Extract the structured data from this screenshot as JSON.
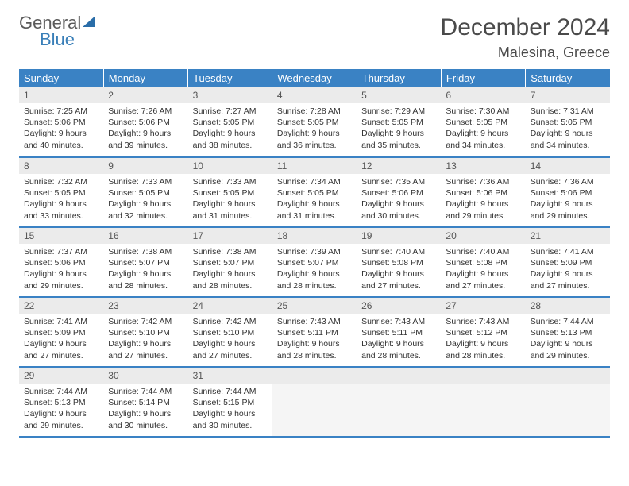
{
  "brand": {
    "line1": "General",
    "line2": "Blue"
  },
  "title": "December 2024",
  "location": "Malesina, Greece",
  "colors": {
    "header_bg": "#3a82c4",
    "header_text": "#ffffff",
    "daynum_bg": "#ebebeb",
    "border": "#3a82c4",
    "text": "#333333"
  },
  "weekdays": [
    "Sunday",
    "Monday",
    "Tuesday",
    "Wednesday",
    "Thursday",
    "Friday",
    "Saturday"
  ],
  "weeks": [
    [
      {
        "n": "1",
        "sr": "Sunrise: 7:25 AM",
        "ss": "Sunset: 5:06 PM",
        "d1": "Daylight: 9 hours",
        "d2": "and 40 minutes."
      },
      {
        "n": "2",
        "sr": "Sunrise: 7:26 AM",
        "ss": "Sunset: 5:06 PM",
        "d1": "Daylight: 9 hours",
        "d2": "and 39 minutes."
      },
      {
        "n": "3",
        "sr": "Sunrise: 7:27 AM",
        "ss": "Sunset: 5:05 PM",
        "d1": "Daylight: 9 hours",
        "d2": "and 38 minutes."
      },
      {
        "n": "4",
        "sr": "Sunrise: 7:28 AM",
        "ss": "Sunset: 5:05 PM",
        "d1": "Daylight: 9 hours",
        "d2": "and 36 minutes."
      },
      {
        "n": "5",
        "sr": "Sunrise: 7:29 AM",
        "ss": "Sunset: 5:05 PM",
        "d1": "Daylight: 9 hours",
        "d2": "and 35 minutes."
      },
      {
        "n": "6",
        "sr": "Sunrise: 7:30 AM",
        "ss": "Sunset: 5:05 PM",
        "d1": "Daylight: 9 hours",
        "d2": "and 34 minutes."
      },
      {
        "n": "7",
        "sr": "Sunrise: 7:31 AM",
        "ss": "Sunset: 5:05 PM",
        "d1": "Daylight: 9 hours",
        "d2": "and 34 minutes."
      }
    ],
    [
      {
        "n": "8",
        "sr": "Sunrise: 7:32 AM",
        "ss": "Sunset: 5:05 PM",
        "d1": "Daylight: 9 hours",
        "d2": "and 33 minutes."
      },
      {
        "n": "9",
        "sr": "Sunrise: 7:33 AM",
        "ss": "Sunset: 5:05 PM",
        "d1": "Daylight: 9 hours",
        "d2": "and 32 minutes."
      },
      {
        "n": "10",
        "sr": "Sunrise: 7:33 AM",
        "ss": "Sunset: 5:05 PM",
        "d1": "Daylight: 9 hours",
        "d2": "and 31 minutes."
      },
      {
        "n": "11",
        "sr": "Sunrise: 7:34 AM",
        "ss": "Sunset: 5:05 PM",
        "d1": "Daylight: 9 hours",
        "d2": "and 31 minutes."
      },
      {
        "n": "12",
        "sr": "Sunrise: 7:35 AM",
        "ss": "Sunset: 5:06 PM",
        "d1": "Daylight: 9 hours",
        "d2": "and 30 minutes."
      },
      {
        "n": "13",
        "sr": "Sunrise: 7:36 AM",
        "ss": "Sunset: 5:06 PM",
        "d1": "Daylight: 9 hours",
        "d2": "and 29 minutes."
      },
      {
        "n": "14",
        "sr": "Sunrise: 7:36 AM",
        "ss": "Sunset: 5:06 PM",
        "d1": "Daylight: 9 hours",
        "d2": "and 29 minutes."
      }
    ],
    [
      {
        "n": "15",
        "sr": "Sunrise: 7:37 AM",
        "ss": "Sunset: 5:06 PM",
        "d1": "Daylight: 9 hours",
        "d2": "and 29 minutes."
      },
      {
        "n": "16",
        "sr": "Sunrise: 7:38 AM",
        "ss": "Sunset: 5:07 PM",
        "d1": "Daylight: 9 hours",
        "d2": "and 28 minutes."
      },
      {
        "n": "17",
        "sr": "Sunrise: 7:38 AM",
        "ss": "Sunset: 5:07 PM",
        "d1": "Daylight: 9 hours",
        "d2": "and 28 minutes."
      },
      {
        "n": "18",
        "sr": "Sunrise: 7:39 AM",
        "ss": "Sunset: 5:07 PM",
        "d1": "Daylight: 9 hours",
        "d2": "and 28 minutes."
      },
      {
        "n": "19",
        "sr": "Sunrise: 7:40 AM",
        "ss": "Sunset: 5:08 PM",
        "d1": "Daylight: 9 hours",
        "d2": "and 27 minutes."
      },
      {
        "n": "20",
        "sr": "Sunrise: 7:40 AM",
        "ss": "Sunset: 5:08 PM",
        "d1": "Daylight: 9 hours",
        "d2": "and 27 minutes."
      },
      {
        "n": "21",
        "sr": "Sunrise: 7:41 AM",
        "ss": "Sunset: 5:09 PM",
        "d1": "Daylight: 9 hours",
        "d2": "and 27 minutes."
      }
    ],
    [
      {
        "n": "22",
        "sr": "Sunrise: 7:41 AM",
        "ss": "Sunset: 5:09 PM",
        "d1": "Daylight: 9 hours",
        "d2": "and 27 minutes."
      },
      {
        "n": "23",
        "sr": "Sunrise: 7:42 AM",
        "ss": "Sunset: 5:10 PM",
        "d1": "Daylight: 9 hours",
        "d2": "and 27 minutes."
      },
      {
        "n": "24",
        "sr": "Sunrise: 7:42 AM",
        "ss": "Sunset: 5:10 PM",
        "d1": "Daylight: 9 hours",
        "d2": "and 27 minutes."
      },
      {
        "n": "25",
        "sr": "Sunrise: 7:43 AM",
        "ss": "Sunset: 5:11 PM",
        "d1": "Daylight: 9 hours",
        "d2": "and 28 minutes."
      },
      {
        "n": "26",
        "sr": "Sunrise: 7:43 AM",
        "ss": "Sunset: 5:11 PM",
        "d1": "Daylight: 9 hours",
        "d2": "and 28 minutes."
      },
      {
        "n": "27",
        "sr": "Sunrise: 7:43 AM",
        "ss": "Sunset: 5:12 PM",
        "d1": "Daylight: 9 hours",
        "d2": "and 28 minutes."
      },
      {
        "n": "28",
        "sr": "Sunrise: 7:44 AM",
        "ss": "Sunset: 5:13 PM",
        "d1": "Daylight: 9 hours",
        "d2": "and 29 minutes."
      }
    ],
    [
      {
        "n": "29",
        "sr": "Sunrise: 7:44 AM",
        "ss": "Sunset: 5:13 PM",
        "d1": "Daylight: 9 hours",
        "d2": "and 29 minutes."
      },
      {
        "n": "30",
        "sr": "Sunrise: 7:44 AM",
        "ss": "Sunset: 5:14 PM",
        "d1": "Daylight: 9 hours",
        "d2": "and 30 minutes."
      },
      {
        "n": "31",
        "sr": "Sunrise: 7:44 AM",
        "ss": "Sunset: 5:15 PM",
        "d1": "Daylight: 9 hours",
        "d2": "and 30 minutes."
      },
      {
        "n": "",
        "empty": true
      },
      {
        "n": "",
        "empty": true
      },
      {
        "n": "",
        "empty": true
      },
      {
        "n": "",
        "empty": true
      }
    ]
  ]
}
